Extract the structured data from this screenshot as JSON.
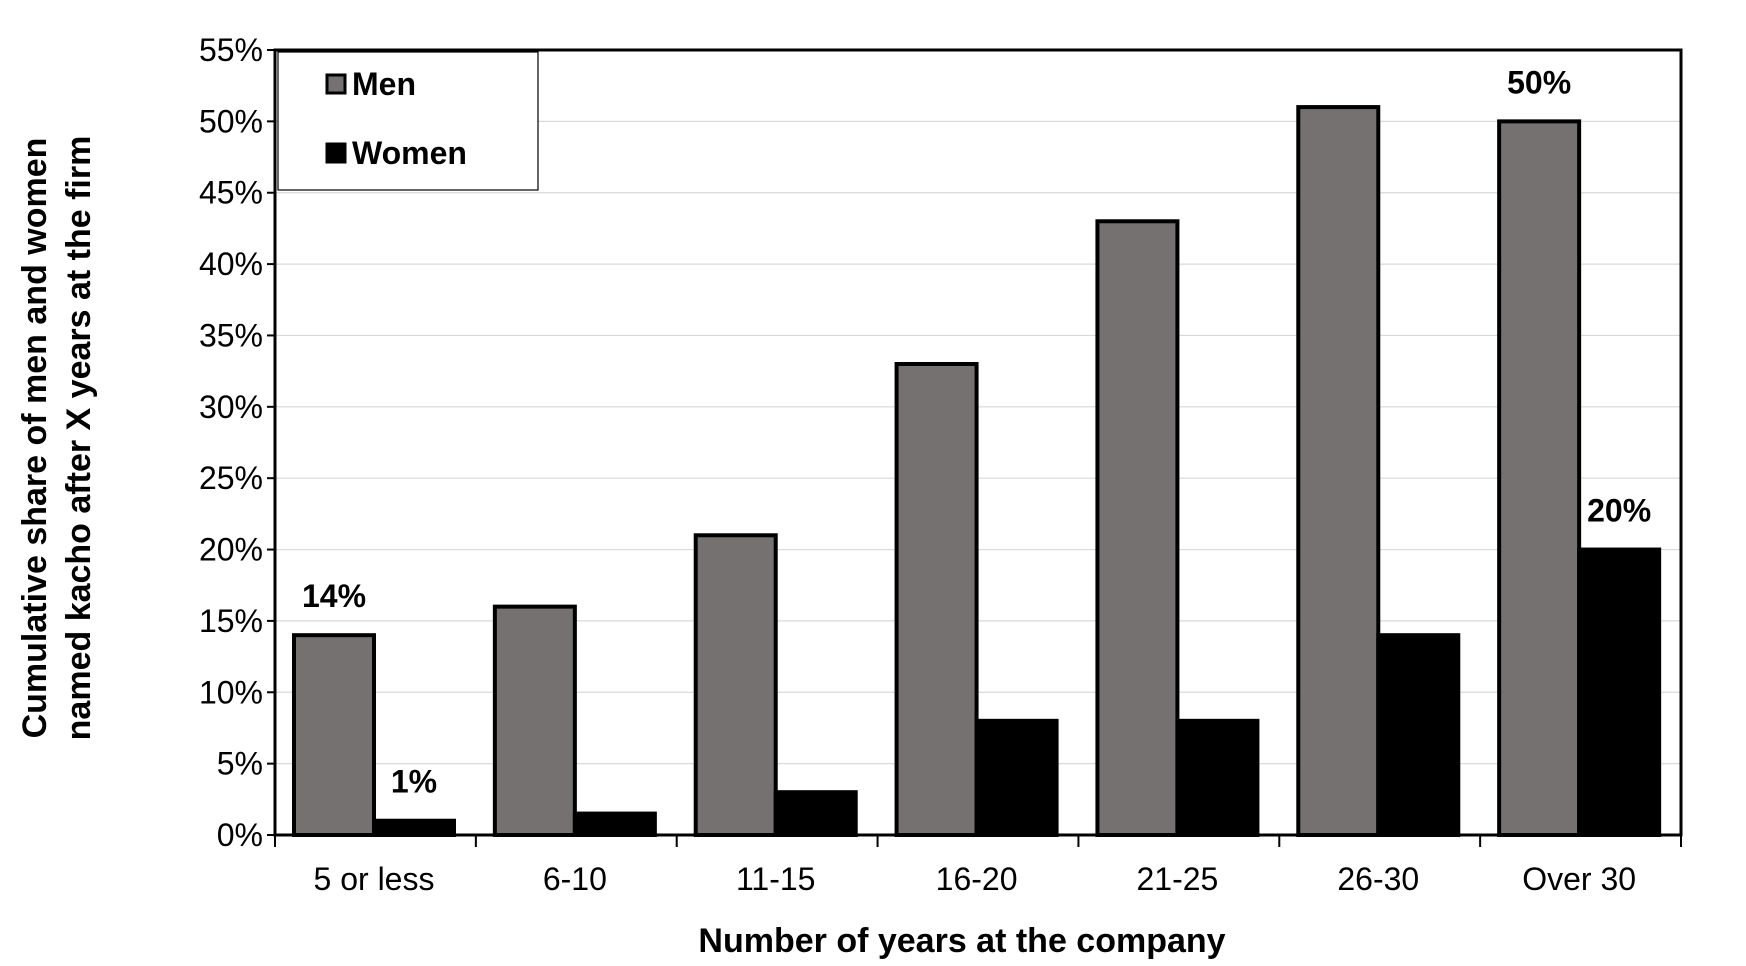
{
  "chart_data": {
    "type": "bar",
    "xlabel": "Number of years at the company",
    "ylabel_line1": "Cumulative share of men and women",
    "ylabel_line2": "named kacho after X years at the firm",
    "categories": [
      "5 or less",
      "6-10",
      "11-15",
      "16-20",
      "21-25",
      "26-30",
      "Over 30"
    ],
    "series": [
      {
        "name": "Men",
        "color": "#767171",
        "values": [
          14,
          16,
          21,
          33,
          43,
          51,
          50
        ]
      },
      {
        "name": "Women",
        "color": "#000000",
        "values": [
          1,
          1.5,
          3,
          8,
          8,
          14,
          20
        ]
      }
    ],
    "ylim": [
      0,
      55
    ],
    "yticks": [
      "0%",
      "5%",
      "10%",
      "15%",
      "20%",
      "25%",
      "30%",
      "35%",
      "40%",
      "45%",
      "50%",
      "55%"
    ],
    "grid": true,
    "legend_position": "top-left",
    "data_labels": [
      {
        "series": 0,
        "index": 0,
        "text": "14%"
      },
      {
        "series": 1,
        "index": 0,
        "text": "1%"
      },
      {
        "series": 0,
        "index": 6,
        "text": "50%"
      },
      {
        "series": 1,
        "index": 6,
        "text": "20%"
      }
    ]
  }
}
